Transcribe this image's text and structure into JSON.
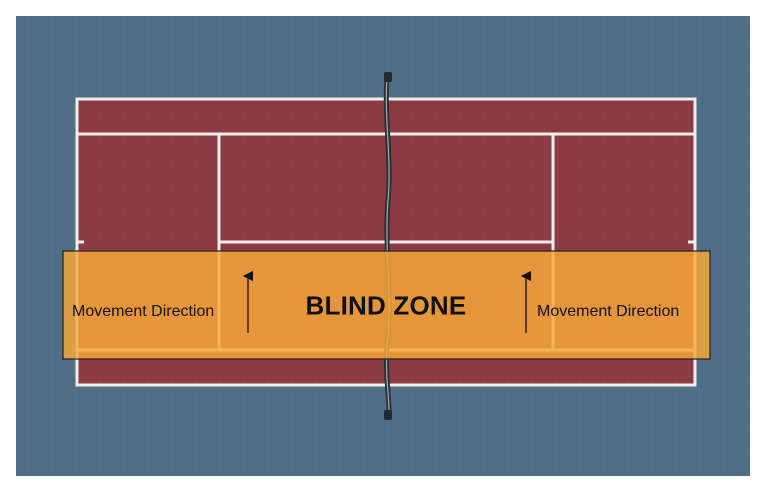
{
  "diagram": {
    "zone_label": "BLIND ZONE",
    "direction_label_left": "Movement Direction",
    "direction_label_right": "Movement Direction"
  },
  "colors": {
    "outer_surface": "#4f6f87",
    "court_surface": "#8c3b44",
    "court_lines": "#f1eeec",
    "net_post": "#2a3138",
    "zone_fill": "#f6a838",
    "zone_border": "#1e1e1e",
    "text": "#111111"
  }
}
